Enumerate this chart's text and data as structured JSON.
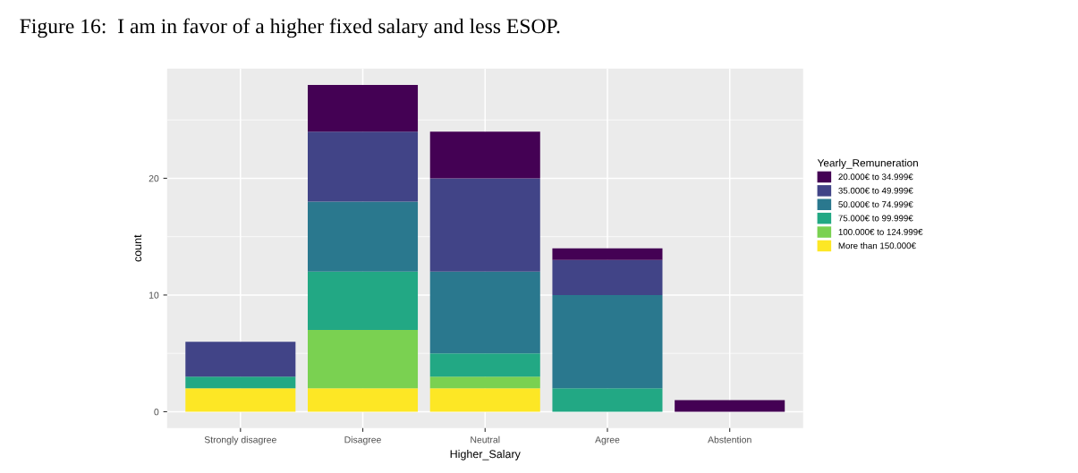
{
  "chart_data": {
    "type": "bar",
    "title": "Figure 16:  I am in favor of a higher fixed salary and less ESOP.",
    "xlabel": "Higher_Salary",
    "ylabel": "count",
    "legend_title": "Yearly_Remuneration",
    "categories": [
      "Strongly disagree",
      "Disagree",
      "Neutral",
      "Agree",
      "Abstention"
    ],
    "stacked": true,
    "ylim": [
      -1.4,
      29.4
    ],
    "yticks": [
      0,
      10,
      20
    ],
    "grid": true,
    "legend": "right",
    "series": [
      {
        "name": "More than 150.000€",
        "color": "#fde725",
        "values": [
          2,
          2,
          2,
          0,
          0
        ]
      },
      {
        "name": "100.000€ to 124.999€",
        "color": "#7ad151",
        "values": [
          0,
          5,
          1,
          0,
          0
        ]
      },
      {
        "name": "75.000€ to 99.999€",
        "color": "#22a884",
        "values": [
          1,
          5,
          2,
          2,
          0
        ]
      },
      {
        "name": "50.000€ to 74.999€",
        "color": "#2a788e",
        "values": [
          0,
          6,
          7,
          8,
          0
        ]
      },
      {
        "name": "35.000€ to 49.999€",
        "color": "#414487",
        "values": [
          3,
          6,
          8,
          3,
          0
        ]
      },
      {
        "name": "20.000€ to 34.999€",
        "color": "#440154",
        "values": [
          0,
          4,
          4,
          1,
          1
        ]
      }
    ]
  }
}
